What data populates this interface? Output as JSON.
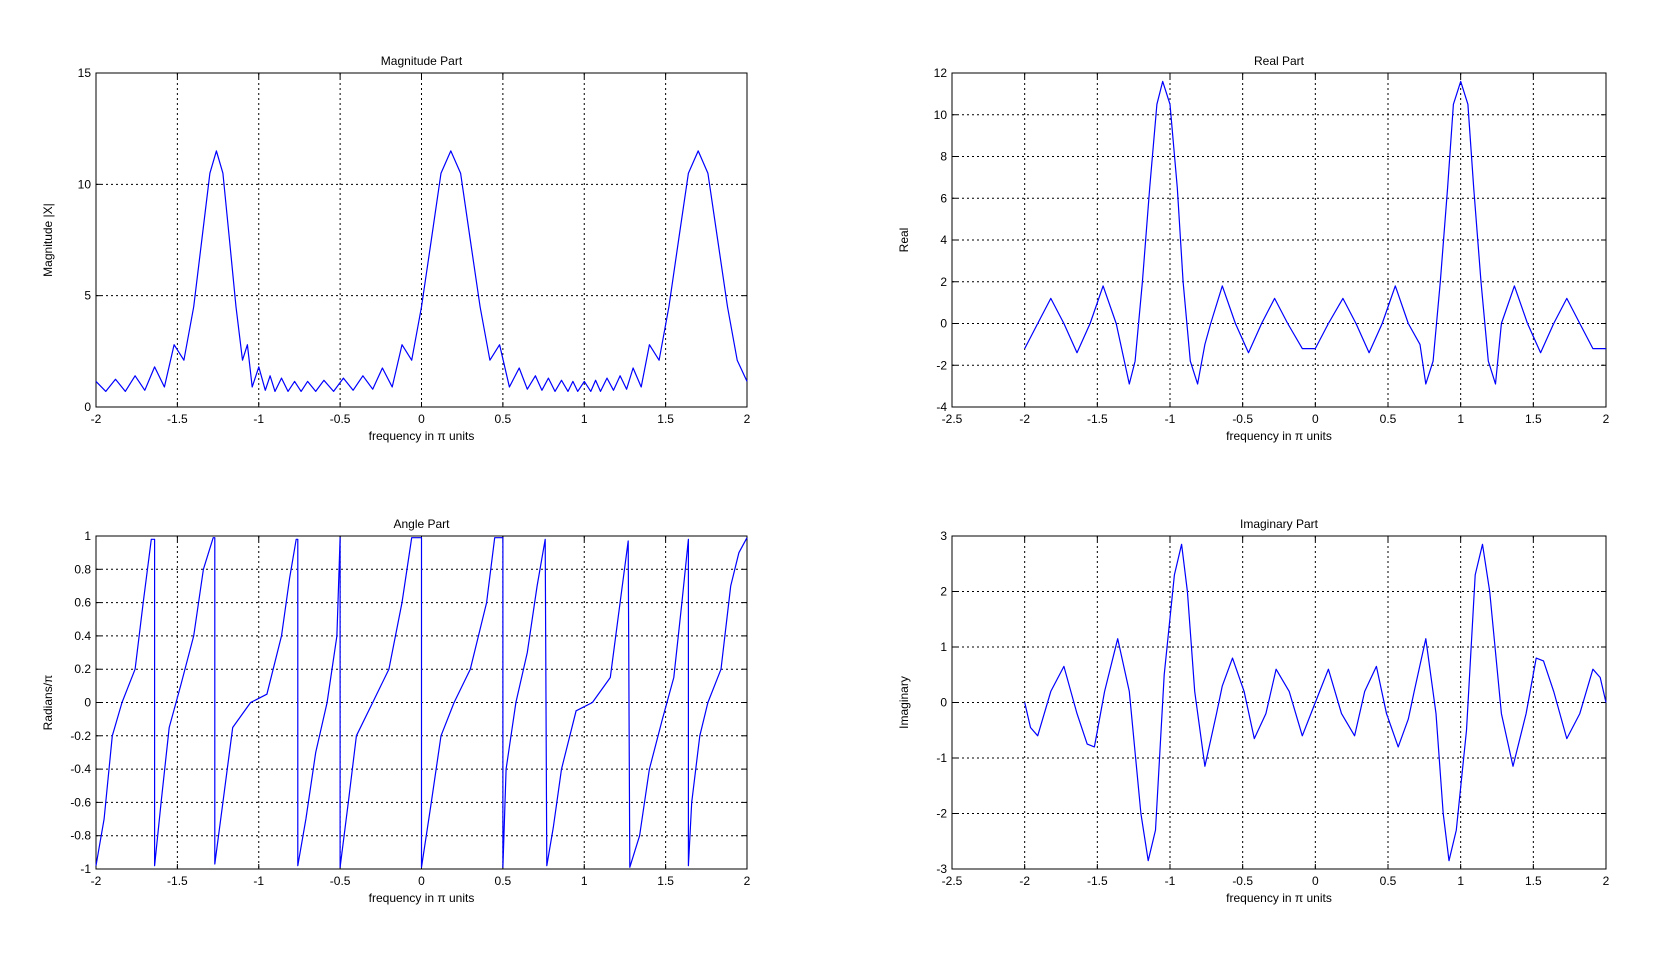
{
  "figure": {
    "background": "#ffffff",
    "line_color": "#0000ff",
    "grid_style": "dotted"
  },
  "chart_data": [
    {
      "id": "magnitude",
      "type": "line",
      "title": "Magnitude Part",
      "xlabel": "frequency in π units",
      "ylabel": "Magnitude  |X|",
      "xlim": [
        -2,
        2
      ],
      "ylim": [
        0,
        15
      ],
      "xticks": [
        -2,
        -1.5,
        -1,
        -0.5,
        0,
        0.5,
        1,
        1.5,
        2
      ],
      "yticks": [
        0,
        5,
        10,
        15
      ],
      "xtick_labels": [
        "-2",
        "-1.5",
        "-1",
        "-0.5",
        "0",
        "0.5",
        "1",
        "1.5",
        "2"
      ],
      "ytick_labels": [
        "0",
        "5",
        "10",
        "15"
      ],
      "grid": true,
      "series": [
        {
          "color": "#0000ff",
          "x": [
            -2.0,
            -1.94,
            -1.88,
            -1.82,
            -1.76,
            -1.7,
            -1.64,
            -1.58,
            -1.52,
            -1.46,
            -1.4,
            -1.35,
            -1.3,
            -1.26,
            -1.22,
            -1.18,
            -1.14,
            -1.1,
            -1.07,
            -1.04,
            -1.0,
            -0.96,
            -0.93,
            -0.9,
            -0.86,
            -0.82,
            -0.78,
            -0.74,
            -0.7,
            -0.65,
            -0.6,
            -0.54,
            -0.48,
            -0.42,
            -0.36,
            -0.3,
            -0.24,
            -0.18,
            -0.12,
            -0.06,
            0.0,
            0.06,
            0.12,
            0.18,
            0.24,
            0.3,
            0.36,
            0.42,
            0.48,
            0.54,
            0.6,
            0.65,
            0.7,
            0.74,
            0.78,
            0.82,
            0.86,
            0.9,
            0.93,
            0.96,
            1.0,
            1.04,
            1.07,
            1.1,
            1.14,
            1.18,
            1.22,
            1.26,
            1.3,
            1.35,
            1.4,
            1.46,
            1.52,
            1.58,
            1.64,
            1.7,
            1.76,
            1.82,
            1.88,
            1.94,
            2.0
          ],
          "y": [
            1.15,
            0.7,
            1.25,
            0.7,
            1.4,
            0.75,
            1.8,
            0.9,
            2.8,
            2.1,
            4.5,
            7.5,
            10.5,
            11.5,
            10.5,
            7.5,
            4.5,
            2.1,
            2.8,
            0.9,
            1.8,
            0.75,
            1.4,
            0.7,
            1.3,
            0.7,
            1.15,
            0.7,
            1.15,
            0.7,
            1.2,
            0.7,
            1.3,
            0.75,
            1.4,
            0.8,
            1.75,
            0.9,
            2.8,
            2.1,
            4.5,
            7.5,
            10.5,
            11.5,
            10.5,
            7.5,
            4.5,
            2.1,
            2.8,
            0.9,
            1.75,
            0.8,
            1.4,
            0.75,
            1.3,
            0.7,
            1.2,
            0.7,
            1.15,
            0.7,
            1.15,
            0.7,
            1.2,
            0.7,
            1.3,
            0.75,
            1.4,
            0.8,
            1.75,
            0.9,
            2.8,
            2.1,
            4.5,
            7.5,
            10.5,
            11.5,
            10.5,
            7.5,
            4.5,
            2.1,
            1.15
          ]
        }
      ]
    },
    {
      "id": "real",
      "type": "line",
      "title": "Real Part",
      "xlabel": "frequency in π units",
      "ylabel": "Real",
      "xlim": [
        -2.5,
        2
      ],
      "ylim": [
        -4,
        12
      ],
      "xticks": [
        -2.5,
        -2,
        -1.5,
        -1,
        -0.5,
        0,
        0.5,
        1,
        1.5,
        2
      ],
      "yticks": [
        -4,
        -2,
        0,
        2,
        4,
        6,
        8,
        10,
        12
      ],
      "xtick_labels": [
        "-2.5",
        "-2",
        "-1.5",
        "-1",
        "-0.5",
        "0",
        "0.5",
        "1",
        "1.5",
        "2"
      ],
      "ytick_labels": [
        "-4",
        "-2",
        "0",
        "2",
        "4",
        "6",
        "8",
        "10",
        "12"
      ],
      "grid": true,
      "series": [
        {
          "color": "#0000ff",
          "x": [
            -2.0,
            -1.91,
            -1.82,
            -1.73,
            -1.64,
            -1.55,
            -1.46,
            -1.37,
            -1.28,
            -1.24,
            -1.19,
            -1.14,
            -1.09,
            -1.05,
            -1.0,
            -0.95,
            -0.91,
            -0.86,
            -0.81,
            -0.76,
            -0.72,
            -0.64,
            -0.55,
            -0.46,
            -0.37,
            -0.28,
            -0.19,
            -0.09,
            0.0,
            0.09,
            0.19,
            0.28,
            0.37,
            0.46,
            0.55,
            0.64,
            0.72,
            0.76,
            0.81,
            0.86,
            0.91,
            0.95,
            1.0,
            1.05,
            1.09,
            1.14,
            1.19,
            1.24,
            1.28,
            1.37,
            1.46,
            1.55,
            1.64,
            1.73,
            1.82,
            1.91,
            2.0
          ],
          "y": [
            -1.2,
            0.0,
            1.2,
            0.0,
            -1.4,
            0.0,
            1.8,
            0.0,
            -2.9,
            -1.8,
            2.0,
            6.5,
            10.5,
            11.6,
            10.5,
            6.5,
            2.0,
            -1.8,
            -2.9,
            -1.0,
            0.0,
            1.8,
            0.0,
            -1.4,
            0.0,
            1.2,
            0.0,
            -1.2,
            -1.2,
            0.0,
            1.2,
            0.0,
            -1.4,
            0.0,
            1.8,
            0.0,
            -1.0,
            -2.9,
            -1.8,
            2.0,
            6.5,
            10.5,
            11.6,
            10.5,
            6.5,
            2.0,
            -1.8,
            -2.9,
            0.0,
            1.8,
            0.0,
            -1.4,
            0.0,
            1.2,
            0.0,
            -1.2,
            -1.2
          ]
        }
      ]
    },
    {
      "id": "angle",
      "type": "line",
      "title": "Angle Part",
      "xlabel": "frequency in π units",
      "ylabel": "Radians/π",
      "xlim": [
        -2,
        2
      ],
      "ylim": [
        -1,
        1
      ],
      "xticks": [
        -2,
        -1.5,
        -1,
        -0.5,
        0,
        0.5,
        1,
        1.5,
        2
      ],
      "yticks": [
        -1,
        -0.8,
        -0.6,
        -0.4,
        -0.2,
        0,
        0.2,
        0.4,
        0.6,
        0.8,
        1
      ],
      "xtick_labels": [
        "-2",
        "-1.5",
        "-1",
        "-0.5",
        "0",
        "0.5",
        "1",
        "1.5",
        "2"
      ],
      "ytick_labels": [
        "-1",
        "-0.8",
        "-0.6",
        "-0.4",
        "-0.2",
        "0",
        "0.2",
        "0.4",
        "0.6",
        "0.8",
        "1"
      ],
      "grid": true,
      "series": [
        {
          "color": "#0000ff",
          "x": [
            -2.0,
            -1.95,
            -1.9,
            -1.84,
            -1.76,
            -1.71,
            -1.66,
            -1.64,
            -1.64,
            -1.6,
            -1.55,
            -1.48,
            -1.4,
            -1.34,
            -1.28,
            -1.27,
            -1.27,
            -1.22,
            -1.16,
            -1.05,
            -0.95,
            -0.86,
            -0.81,
            -0.77,
            -0.76,
            -0.76,
            -0.71,
            -0.65,
            -0.58,
            -0.52,
            -0.5,
            -0.5,
            -0.45,
            -0.4,
            -0.3,
            -0.2,
            -0.12,
            -0.06,
            -0.01,
            0.0,
            0.0,
            0.06,
            0.12,
            0.2,
            0.3,
            0.4,
            0.45,
            0.5,
            0.5,
            0.52,
            0.58,
            0.65,
            0.71,
            0.76,
            0.76,
            0.77,
            0.81,
            0.86,
            0.95,
            1.05,
            1.16,
            1.22,
            1.27,
            1.27,
            1.28,
            1.34,
            1.4,
            1.48,
            1.55,
            1.6,
            1.64,
            1.64,
            1.66,
            1.71,
            1.76,
            1.84,
            1.9,
            1.95,
            2.0
          ],
          "y": [
            -0.98,
            -0.7,
            -0.2,
            0.0,
            0.2,
            0.6,
            0.98,
            0.98,
            -0.98,
            -0.6,
            -0.15,
            0.1,
            0.4,
            0.8,
            0.99,
            0.99,
            -0.97,
            -0.6,
            -0.15,
            0.0,
            0.05,
            0.4,
            0.75,
            0.98,
            0.98,
            -0.98,
            -0.7,
            -0.3,
            0.0,
            0.4,
            0.99,
            -0.99,
            -0.6,
            -0.2,
            0.0,
            0.2,
            0.6,
            0.99,
            0.99,
            0.99,
            -0.99,
            -0.6,
            -0.2,
            0.0,
            0.2,
            0.6,
            0.99,
            0.99,
            -0.99,
            -0.4,
            0.0,
            0.3,
            0.7,
            0.98,
            0.98,
            -0.98,
            -0.75,
            -0.4,
            -0.05,
            0.0,
            0.15,
            0.6,
            0.97,
            0.97,
            -0.99,
            -0.8,
            -0.4,
            -0.1,
            0.15,
            0.6,
            0.98,
            -0.98,
            -0.6,
            -0.2,
            0.0,
            0.2,
            0.7,
            0.9,
            0.99
          ]
        }
      ]
    },
    {
      "id": "imaginary",
      "type": "line",
      "title": "Imaginary Part",
      "xlabel": "frequency in π units",
      "ylabel": "Imaginary",
      "xlim": [
        -2.5,
        2
      ],
      "ylim": [
        -3,
        3
      ],
      "xticks": [
        -2.5,
        -2,
        -1.5,
        -1,
        -0.5,
        0,
        0.5,
        1,
        1.5,
        2
      ],
      "yticks": [
        -3,
        -2,
        -1,
        0,
        1,
        2,
        3
      ],
      "xtick_labels": [
        "-2.5",
        "-2",
        "-1.5",
        "-1",
        "-0.5",
        "0",
        "0.5",
        "1",
        "1.5",
        "2"
      ],
      "ytick_labels": [
        "-3",
        "-2",
        "-1",
        "0",
        "1",
        "2",
        "3"
      ],
      "grid": true,
      "series": [
        {
          "color": "#0000ff",
          "x": [
            -2.0,
            -1.96,
            -1.91,
            -1.82,
            -1.73,
            -1.64,
            -1.57,
            -1.52,
            -1.45,
            -1.36,
            -1.28,
            -1.2,
            -1.15,
            -1.1,
            -1.04,
            -0.97,
            -0.92,
            -0.88,
            -0.83,
            -0.76,
            -0.68,
            -0.64,
            -0.57,
            -0.49,
            -0.42,
            -0.34,
            -0.27,
            -0.18,
            -0.09,
            0.0,
            0.09,
            0.18,
            0.27,
            0.34,
            0.42,
            0.49,
            0.57,
            0.64,
            0.68,
            0.76,
            0.83,
            0.88,
            0.92,
            0.97,
            1.04,
            1.1,
            1.15,
            1.2,
            1.28,
            1.36,
            1.45,
            1.52,
            1.57,
            1.64,
            1.73,
            1.82,
            1.91,
            1.96,
            2.0
          ],
          "y": [
            0.0,
            -0.45,
            -0.6,
            0.2,
            0.65,
            -0.2,
            -0.75,
            -0.8,
            0.2,
            1.15,
            0.2,
            -2.0,
            -2.85,
            -2.3,
            0.5,
            2.3,
            2.85,
            2.0,
            0.2,
            -1.15,
            -0.2,
            0.3,
            0.8,
            0.2,
            -0.65,
            -0.2,
            0.6,
            0.2,
            -0.6,
            0.0,
            0.6,
            -0.2,
            -0.6,
            0.2,
            0.65,
            -0.2,
            -0.8,
            -0.3,
            0.2,
            1.15,
            -0.2,
            -2.0,
            -2.85,
            -2.3,
            -0.5,
            2.3,
            2.85,
            2.0,
            -0.2,
            -1.15,
            -0.2,
            0.8,
            0.75,
            0.2,
            -0.65,
            -0.2,
            0.6,
            0.45,
            0.0
          ]
        }
      ]
    }
  ]
}
